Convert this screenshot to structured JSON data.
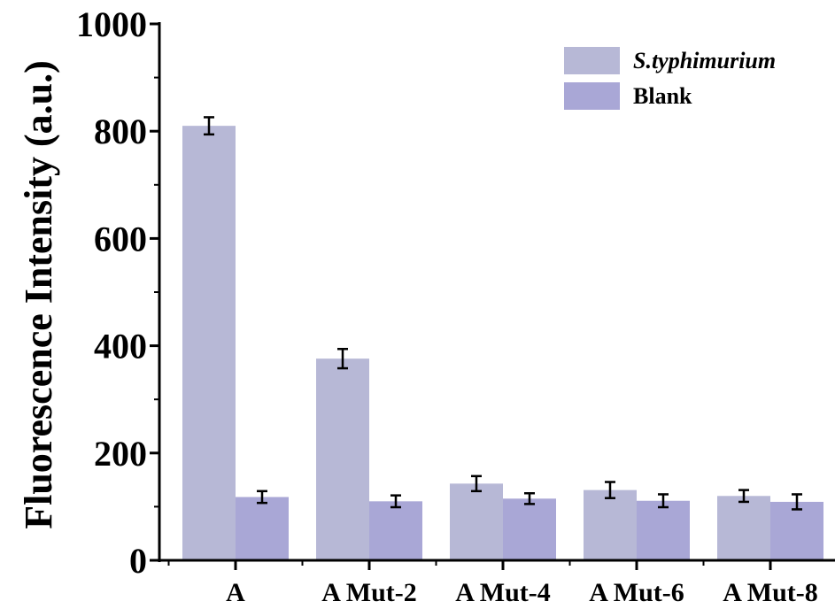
{
  "chart_data": {
    "type": "bar",
    "ylabel": "Fluorescence Intensity (a.u.)",
    "xlabel": "",
    "ylim": [
      0,
      1000
    ],
    "yticks": [
      0,
      200,
      400,
      600,
      800,
      1000
    ],
    "categories": [
      "A",
      "A Mut-2",
      "A Mut-4",
      "A Mut-6",
      "A Mut-8"
    ],
    "series": [
      {
        "name": "S.typhimurium",
        "color": "#b7b8d6",
        "values": [
          810,
          376,
          143,
          131,
          120
        ],
        "errors": [
          16,
          18,
          14,
          15,
          11
        ]
      },
      {
        "name": "Blank",
        "color": "#a9a7d6",
        "values": [
          118,
          110,
          115,
          111,
          109
        ],
        "errors": [
          11,
          11,
          10,
          12,
          14
        ]
      }
    ],
    "legend_position": "top-right",
    "grid": false,
    "error_bars": true
  }
}
